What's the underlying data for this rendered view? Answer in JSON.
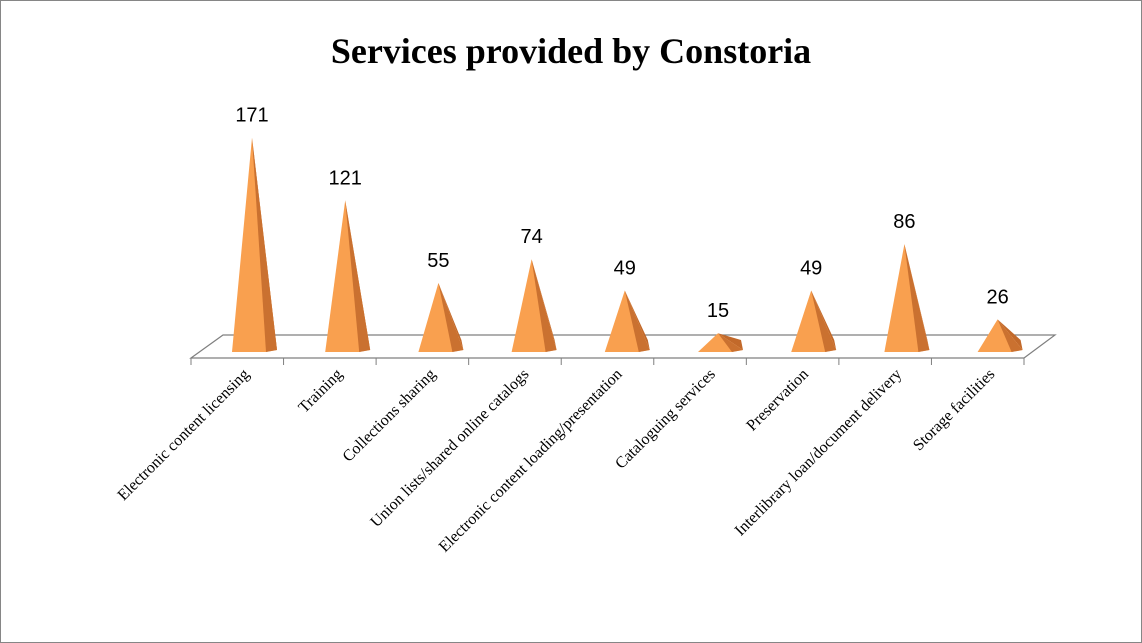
{
  "chart_data": {
    "type": "bar",
    "title": "Services provided by Constoria",
    "categories": [
      "Electronic content licensing",
      "Training",
      "Collections sharing",
      "Union lists/shared online catalogs",
      "Electronic content loading/presentation",
      "Cataloguing services",
      "Preservation",
      "Interlibrary loan/document delivery",
      "Storage facilities"
    ],
    "values": [
      171,
      121,
      55,
      74,
      49,
      15,
      49,
      86,
      26
    ],
    "bar_shape": "pyramid",
    "colors": {
      "face_light": "#f9a04f",
      "face_dark": "#c2692a",
      "floor_stroke": "#7f7f7f"
    },
    "grid": false,
    "legend": "none",
    "data_labels": true
  }
}
